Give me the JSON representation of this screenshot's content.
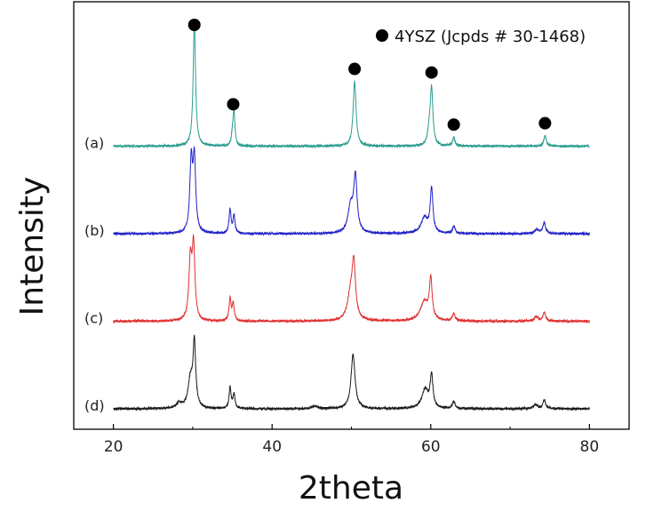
{
  "chart_data": {
    "type": "line",
    "xlabel": "2theta",
    "ylabel": "Intensity",
    "xlim": [
      15,
      85
    ],
    "x_range": [
      20,
      80
    ],
    "xticks": [
      20,
      40,
      60,
      80
    ],
    "yticks_shown": false,
    "legend": {
      "marker": "filled-circle",
      "label": "4YSZ (Jcpds # 30-1468)",
      "position": "top-right"
    },
    "reflection_markers_2theta": [
      30.2,
      35.1,
      50.4,
      60.1,
      62.9,
      74.4
    ],
    "series": [
      {
        "name": "(a)",
        "color": "#2a9d8f",
        "offset": 3,
        "peaks": [
          {
            "x": 30.2,
            "h": 1.42,
            "w": 0.18
          },
          {
            "x": 35.0,
            "h": 0.12,
            "w": 0.15
          },
          {
            "x": 35.2,
            "h": 0.38,
            "w": 0.14
          },
          {
            "x": 50.4,
            "h": 0.74,
            "w": 0.22
          },
          {
            "x": 59.8,
            "h": 0.14,
            "w": 0.22
          },
          {
            "x": 60.1,
            "h": 0.65,
            "w": 0.2
          },
          {
            "x": 62.9,
            "h": 0.1,
            "w": 0.18
          },
          {
            "x": 74.4,
            "h": 0.12,
            "w": 0.18
          }
        ]
      },
      {
        "name": "(b)",
        "color": "#2323c8",
        "offset": 2,
        "peaks": [
          {
            "x": 29.8,
            "h": 0.8,
            "w": 0.2
          },
          {
            "x": 30.2,
            "h": 0.82,
            "w": 0.2
          },
          {
            "x": 34.7,
            "h": 0.27,
            "w": 0.15
          },
          {
            "x": 35.2,
            "h": 0.2,
            "w": 0.15
          },
          {
            "x": 49.9,
            "h": 0.3,
            "w": 0.4
          },
          {
            "x": 50.5,
            "h": 0.62,
            "w": 0.25
          },
          {
            "x": 59.2,
            "h": 0.18,
            "w": 0.5
          },
          {
            "x": 60.1,
            "h": 0.5,
            "w": 0.2
          },
          {
            "x": 62.9,
            "h": 0.08,
            "w": 0.2
          },
          {
            "x": 73.4,
            "h": 0.05,
            "w": 0.3
          },
          {
            "x": 74.3,
            "h": 0.12,
            "w": 0.2
          }
        ]
      },
      {
        "name": "(c)",
        "color": "#e03030",
        "offset": 1,
        "peaks": [
          {
            "x": 29.7,
            "h": 0.68,
            "w": 0.22
          },
          {
            "x": 30.1,
            "h": 0.82,
            "w": 0.2
          },
          {
            "x": 34.7,
            "h": 0.25,
            "w": 0.15
          },
          {
            "x": 35.1,
            "h": 0.2,
            "w": 0.15
          },
          {
            "x": 49.9,
            "h": 0.3,
            "w": 0.45
          },
          {
            "x": 50.3,
            "h": 0.58,
            "w": 0.25
          },
          {
            "x": 59.2,
            "h": 0.22,
            "w": 0.6
          },
          {
            "x": 60.0,
            "h": 0.45,
            "w": 0.2
          },
          {
            "x": 62.9,
            "h": 0.08,
            "w": 0.2
          },
          {
            "x": 73.3,
            "h": 0.05,
            "w": 0.3
          },
          {
            "x": 74.3,
            "h": 0.1,
            "w": 0.2
          }
        ]
      },
      {
        "name": "(d)",
        "color": "#1a1a1a",
        "offset": 0,
        "peaks": [
          {
            "x": 28.3,
            "h": 0.06,
            "w": 0.4
          },
          {
            "x": 29.7,
            "h": 0.32,
            "w": 0.35
          },
          {
            "x": 30.2,
            "h": 0.72,
            "w": 0.2
          },
          {
            "x": 34.7,
            "h": 0.24,
            "w": 0.15
          },
          {
            "x": 35.2,
            "h": 0.16,
            "w": 0.15
          },
          {
            "x": 45.4,
            "h": 0.03,
            "w": 0.4
          },
          {
            "x": 50.2,
            "h": 0.62,
            "w": 0.3
          },
          {
            "x": 59.3,
            "h": 0.22,
            "w": 0.5
          },
          {
            "x": 60.1,
            "h": 0.36,
            "w": 0.2
          },
          {
            "x": 62.9,
            "h": 0.08,
            "w": 0.2
          },
          {
            "x": 73.2,
            "h": 0.05,
            "w": 0.3
          },
          {
            "x": 74.3,
            "h": 0.1,
            "w": 0.2
          }
        ]
      }
    ]
  }
}
